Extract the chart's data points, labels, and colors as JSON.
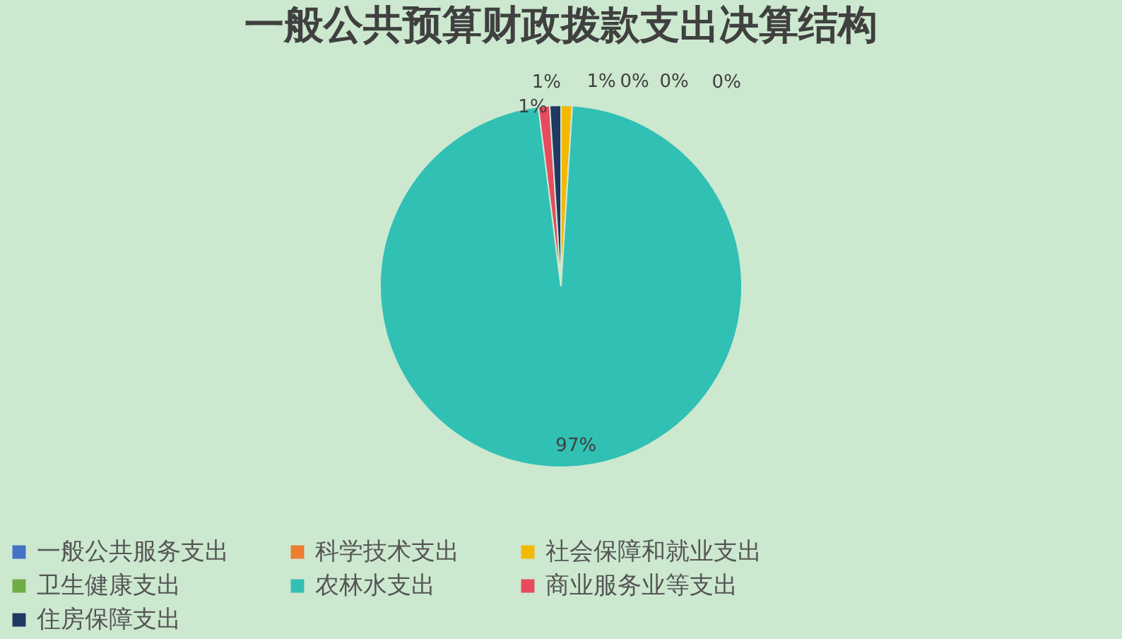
{
  "chart_data": {
    "type": "pie",
    "title": "一般公共预算财政拨款支出决算结构",
    "categories": [
      "一般公共服务支出",
      "科学技术支出",
      "社会保障和就业支出",
      "卫生健康支出",
      "农林水支出",
      "商业服务业等支出",
      "住房保障支出"
    ],
    "values": [
      0,
      0,
      1,
      0,
      97,
      1,
      1
    ],
    "colors": [
      "#4472c4",
      "#ed7d31",
      "#f5b800",
      "#70ad47",
      "#31c0b4",
      "#e84a5f",
      "#203864"
    ],
    "value_labels": [
      "0%",
      "0%",
      "1%",
      "0%",
      "97%",
      "1%",
      "1%"
    ],
    "legend": "bottom"
  }
}
